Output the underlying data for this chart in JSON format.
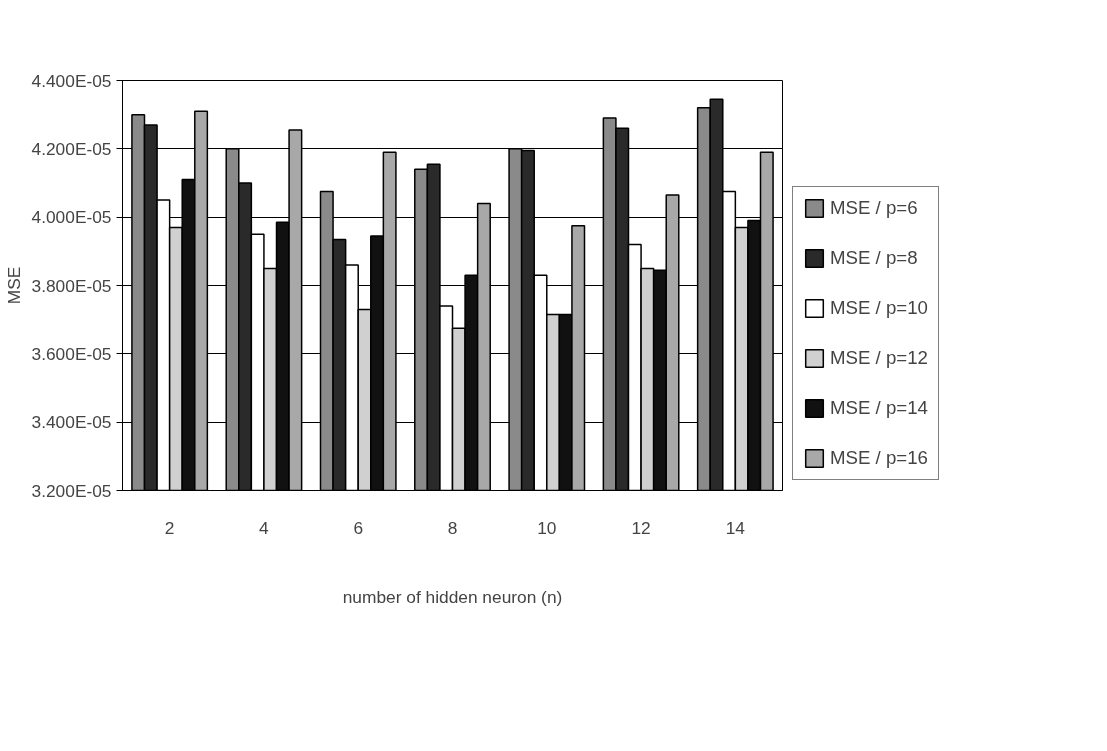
{
  "chart_data": {
    "type": "bar",
    "xlabel": "number of hidden neuron (n)",
    "ylabel": "MSE",
    "categories": [
      "2",
      "4",
      "6",
      "8",
      "10",
      "12",
      "14"
    ],
    "series": [
      {
        "name": "MSE / p=6",
        "color": "#8a8a8a",
        "values": [
          4.3e-05,
          4.2e-05,
          4.075e-05,
          4.14e-05,
          4.2e-05,
          4.29e-05,
          4.32e-05
        ]
      },
      {
        "name": "MSE / p=8",
        "color": "#2a2a2a",
        "values": [
          4.27e-05,
          4.1e-05,
          3.935e-05,
          4.155e-05,
          4.195e-05,
          4.26e-05,
          4.345e-05
        ]
      },
      {
        "name": "MSE / p=10",
        "color": "#ffffff",
        "values": [
          4.05e-05,
          3.95e-05,
          3.86e-05,
          3.74e-05,
          3.83e-05,
          3.92e-05,
          4.075e-05
        ]
      },
      {
        "name": "MSE / p=12",
        "color": "#d0d0d0",
        "values": [
          3.97e-05,
          3.85e-05,
          3.73e-05,
          3.675e-05,
          3.715e-05,
          3.85e-05,
          3.97e-05
        ]
      },
      {
        "name": "MSE / p=14",
        "color": "#111111",
        "values": [
          4.11e-05,
          3.985e-05,
          3.945e-05,
          3.83e-05,
          3.715e-05,
          3.845e-05,
          3.99e-05
        ]
      },
      {
        "name": "MSE / p=16",
        "color": "#a8a8a8",
        "values": [
          4.31e-05,
          4.255e-05,
          4.19e-05,
          4.04e-05,
          3.975e-05,
          4.065e-05,
          4.19e-05
        ]
      }
    ],
    "ylim": [
      3.2e-05,
      4.4e-05
    ],
    "yticks": [
      {
        "value": 3.2e-05,
        "label": "3.200E-05"
      },
      {
        "value": 3.4e-05,
        "label": "3.400E-05"
      },
      {
        "value": 3.6e-05,
        "label": "3.600E-05"
      },
      {
        "value": 3.8e-05,
        "label": "3.800E-05"
      },
      {
        "value": 4e-05,
        "label": "4.000E-05"
      },
      {
        "value": 4.2e-05,
        "label": "4.200E-05"
      },
      {
        "value": 4.4e-05,
        "label": "4.400E-05"
      }
    ],
    "grid": "y",
    "legend": "right"
  }
}
